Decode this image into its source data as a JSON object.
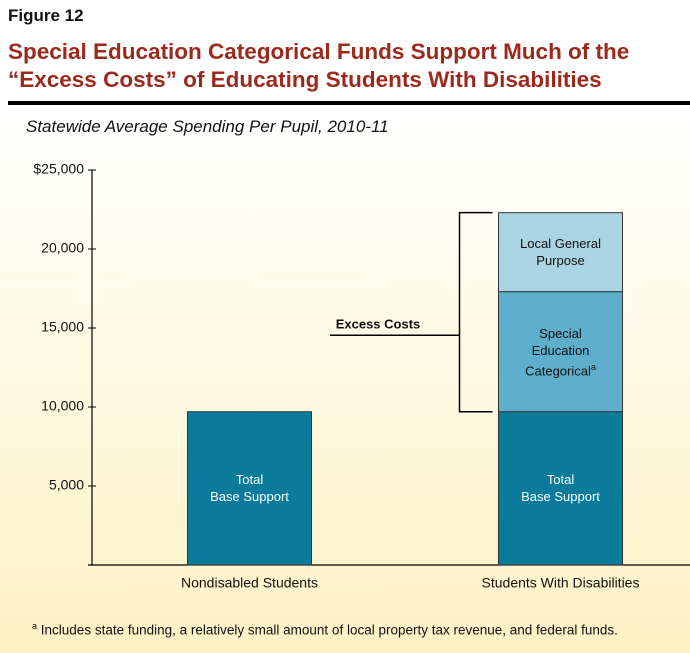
{
  "chart_data": {
    "type": "stacked-bar",
    "figure_label": "Figure 12",
    "title": "Special Education Categorical Funds Support Much of the “Excess Costs” of Educating Students With Disabilities",
    "subtitle": "Statewide Average Spending Per Pupil, 2010-11",
    "categories": [
      "Nondisabled Students",
      "Students With Disabilities"
    ],
    "series": [
      {
        "name": "Total\nBase Support",
        "color": "#0b7b9c",
        "values": [
          9700,
          9700
        ]
      },
      {
        "name": "Special\nEducation\nCategorical",
        "color": "#5eafcc",
        "values": [
          null,
          7600
        ]
      },
      {
        "name": "Local General\nPurpose",
        "color": "#a9d4e4",
        "values": [
          null,
          5000
        ]
      }
    ],
    "ylim": [
      0,
      25000
    ],
    "yticks": [
      {
        "value": 5000,
        "label": "5,000"
      },
      {
        "value": 10000,
        "label": "10,000"
      },
      {
        "value": 15000,
        "label": "15,000"
      },
      {
        "value": 20000,
        "label": "20,000"
      },
      {
        "value": 25000,
        "label": "$25,000"
      }
    ],
    "annotation": "Excess Costs",
    "footnote": {
      "marker": "a",
      "text": "Includes state funding, a relatively small amount of local property tax revenue, and federal funds."
    }
  }
}
